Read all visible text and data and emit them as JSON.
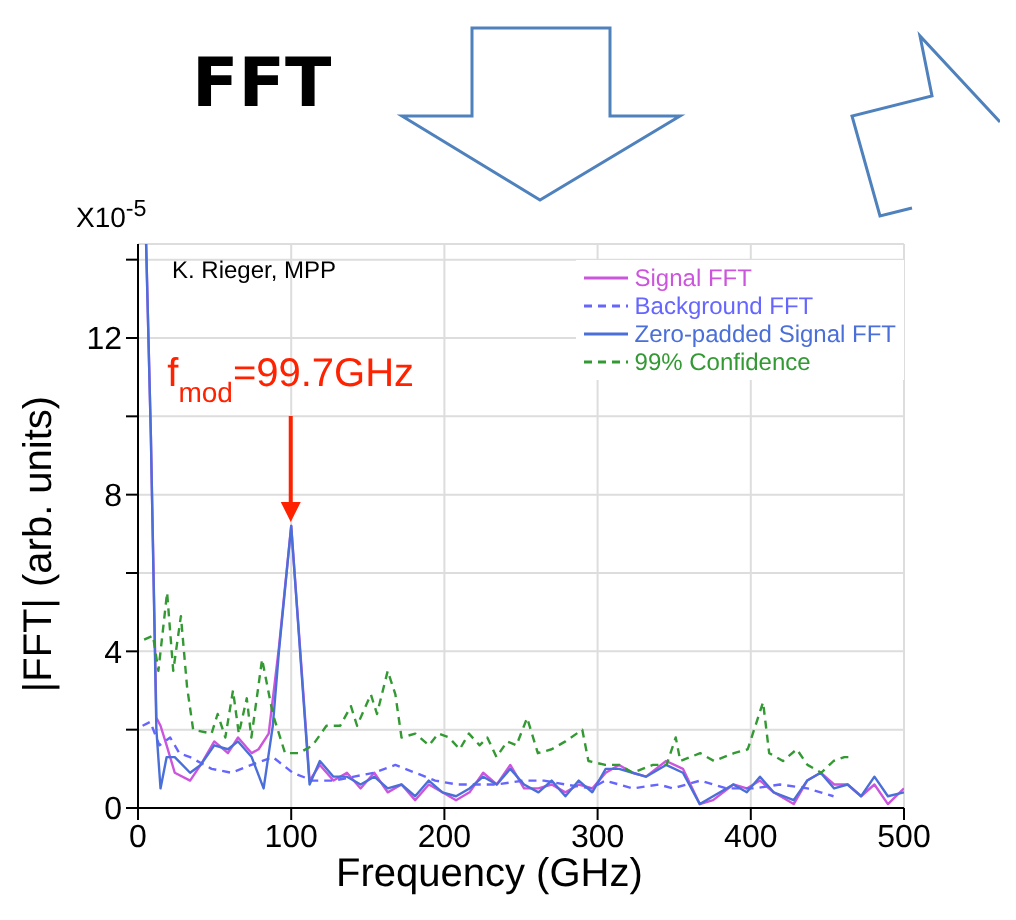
{
  "chart_data": {
    "type": "line",
    "title": "FFT",
    "xlabel": "Frequency (GHz)",
    "ylabel": "|FFT| (arb. units)",
    "annotations": [
      "X10$^{-5}$",
      "K. Rieger, MPP",
      {
        "text": "f$_{mod}$=99.7GHz",
        "x": 99.7,
        "y": 7.2
      }
    ],
    "xlim": [
      0,
      500
    ],
    "xticks": [
      0,
      100,
      200,
      300,
      400,
      500
    ],
    "ylim": [
      0,
      14.4
    ],
    "yticks": [
      0,
      {
        "value": 2,
        "label": null
      },
      4,
      {
        "value": 6,
        "label": null
      },
      8,
      {
        "value": 10,
        "label": null
      },
      12,
      {
        "value": 14,
        "label": null
      }
    ],
    "grid": true,
    "legend": "top right",
    "marker": "none",
    "series": [
      {
        "name": "Signal FFT",
        "color": "#cc55dd",
        "line_style": "solid",
        "x": [
          5.3,
          8.4,
          12,
          14.7,
          18.7,
          24,
          34,
          40.9,
          49.8,
          58.7,
          65.3,
          74.2,
          78.7,
          85.3,
          92,
          100,
          107.6,
          112,
          118.7,
          127.6,
          136.4,
          145.3,
          154.2,
          163,
          172,
          180.9,
          189.8,
          198.7,
          207.6,
          216.4,
          225.3,
          234.2,
          243,
          252,
          261.4,
          270,
          279,
          287.7,
          296.5,
          305.3,
          314,
          322.8,
          331.6,
          344.7,
          355.7,
          366.7,
          375.4,
          388.6,
          397.4,
          406,
          414.9,
          428,
          436.8,
          445.6,
          454.4,
          463.2,
          472,
          480.7,
          489.5,
          500
        ],
        "values": [
          14.4,
          9.5,
          2.3,
          2.1,
          1.6,
          0.9,
          0.7,
          1.1,
          1.7,
          1.4,
          1.8,
          1.4,
          1.5,
          1.9,
          4.1,
          7.2,
          3.1,
          0.7,
          1.1,
          0.7,
          0.9,
          0.5,
          0.9,
          0.4,
          0.6,
          0.2,
          0.6,
          0.4,
          0.2,
          0.4,
          0.9,
          0.6,
          1.1,
          0.5,
          0.5,
          0.6,
          0.4,
          0.6,
          0.5,
          0.9,
          1.1,
          0.9,
          0.8,
          1.2,
          1.0,
          0.1,
          0.2,
          0.6,
          0.5,
          0.7,
          0.4,
          0.1,
          0.7,
          0.9,
          0.6,
          0.6,
          0.3,
          0.6,
          0.1,
          0.5
        ]
      },
      {
        "name": "Background FFT",
        "color": "#6666ff",
        "line_style": "dashed",
        "x": [
          3,
          8,
          14,
          21,
          27,
          34,
          48,
          61,
          74,
          88,
          101,
          114,
          128,
          141,
          154,
          168,
          181,
          194,
          208,
          221,
          234,
          252,
          265,
          279,
          296,
          305,
          323,
          340,
          349,
          367,
          384,
          402,
          419,
          437,
          454
        ],
        "values": [
          2.1,
          2.2,
          1.6,
          1.8,
          1.4,
          1.3,
          1.0,
          0.9,
          1.1,
          1.3,
          0.9,
          0.7,
          0.7,
          0.8,
          0.9,
          1.1,
          0.9,
          0.7,
          0.6,
          0.6,
          0.6,
          0.7,
          0.7,
          0.6,
          0.5,
          0.7,
          0.5,
          0.6,
          0.5,
          0.7,
          0.5,
          0.5,
          0.6,
          0.5,
          0.3
        ]
      },
      {
        "name": "Zero-padded Signal FFT",
        "color": "#4a6fd8",
        "line_style": "solid",
        "x": [
          5.3,
          8.4,
          12,
          14.7,
          18.7,
          24,
          34,
          40.9,
          49.8,
          58.7,
          65.3,
          74.2,
          82,
          88,
          92,
          100,
          107.6,
          112,
          118.7,
          127.6,
          136.4,
          145.3,
          154.2,
          163,
          172,
          180.9,
          189.8,
          198.7,
          207.6,
          216.4,
          225.3,
          234.2,
          243,
          252,
          261.4,
          270,
          279,
          287.7,
          296.5,
          305.3,
          314,
          322.8,
          331.6,
          344.7,
          355.7,
          366.7,
          375.4,
          388.6,
          397.4,
          406,
          414.9,
          428,
          436.8,
          445.6,
          454.4,
          463.2,
          472,
          480.7,
          489.5,
          500
        ],
        "values": [
          14.4,
          9.5,
          2.0,
          0.5,
          1.3,
          1.3,
          0.9,
          1.1,
          1.6,
          1.5,
          1.7,
          1.3,
          0.5,
          2.1,
          4.0,
          7.2,
          3.0,
          0.6,
          1.2,
          0.8,
          0.8,
          0.6,
          0.8,
          0.5,
          0.6,
          0.3,
          0.7,
          0.4,
          0.3,
          0.5,
          0.8,
          0.6,
          1.0,
          0.6,
          0.4,
          0.7,
          0.3,
          0.7,
          0.4,
          1.0,
          1.0,
          0.9,
          0.8,
          1.1,
          0.9,
          0.1,
          0.3,
          0.6,
          0.4,
          0.8,
          0.4,
          0.2,
          0.7,
          0.9,
          0.5,
          0.6,
          0.3,
          0.8,
          0.3,
          0.4
        ]
      },
      {
        "name": "99% Confidence",
        "color": "#339933",
        "line_style": "dashed",
        "x": [
          4,
          9.8,
          13.3,
          19,
          23,
          28,
          32,
          36,
          48,
          52,
          57,
          62,
          65.8,
          71,
          74,
          81,
          88,
          92,
          96,
          105,
          114,
          123,
          132,
          139,
          143,
          152,
          156,
          163,
          168,
          172,
          181,
          190,
          196,
          203,
          210,
          216,
          223,
          228,
          234,
          241,
          247,
          254,
          261,
          270,
          279,
          290,
          294,
          305,
          314,
          323,
          336,
          345,
          351,
          354,
          367,
          376,
          389,
          398,
          408,
          412,
          421,
          430,
          437,
          446,
          454,
          461,
          465
        ],
        "values": [
          4.3,
          4.4,
          3.5,
          5.5,
          3.5,
          4.9,
          3.1,
          2.0,
          1.9,
          2.4,
          1.8,
          3.0,
          1.9,
          2.8,
          1.8,
          3.8,
          2.4,
          1.9,
          1.4,
          1.4,
          1.6,
          2.1,
          2.1,
          2.6,
          2.1,
          2.9,
          2.4,
          3.5,
          2.9,
          1.8,
          1.9,
          1.6,
          1.9,
          1.8,
          1.5,
          1.9,
          1.6,
          1.8,
          1.3,
          1.7,
          1.6,
          2.3,
          1.4,
          1.5,
          1.7,
          2.0,
          1.2,
          1.1,
          1.1,
          0.9,
          1.1,
          1.1,
          1.8,
          1.2,
          1.4,
          1.2,
          1.4,
          1.5,
          2.7,
          1.4,
          1.2,
          1.5,
          1.1,
          0.9,
          1.2,
          1.3,
          1.3
        ]
      }
    ]
  }
}
